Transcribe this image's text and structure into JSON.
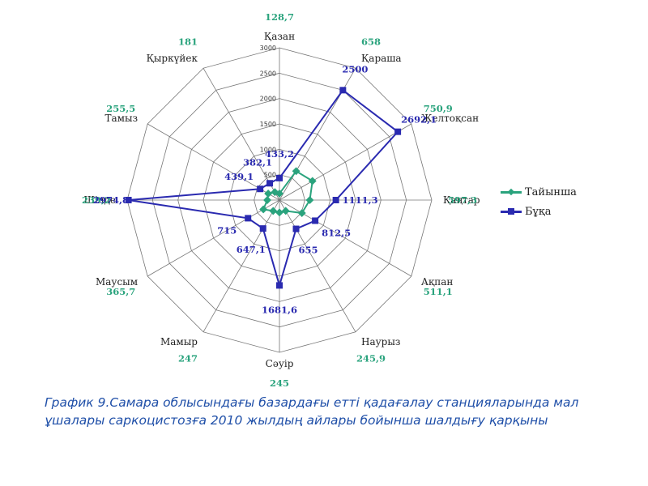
{
  "chart_data": {
    "type": "radar",
    "title": "",
    "categories": [
      "Қазан",
      "Қараша",
      "Желтоқсан",
      "Қаңтар",
      "Ақпан",
      "Наурыз",
      "Сәуір",
      "Мамыр",
      "Маусым",
      "Шілде",
      "Тамыз",
      "Қыркүйек"
    ],
    "rticks": [
      "500",
      "1000",
      "1500",
      "2000",
      "2500",
      "3000"
    ],
    "rmax": 3000,
    "series": [
      {
        "name": "Тайынша",
        "color": "#2aa37d",
        "values": [
          128.7,
          658,
          750.9,
          597.3,
          511.1,
          245.9,
          245,
          247,
          365.7,
          239.2,
          255.5,
          181
        ],
        "labels": [
          "128,7",
          "658",
          "750,9",
          "597,3",
          "511,1",
          "245,9",
          "245",
          "247",
          "365,7",
          "239,2",
          "255,5",
          "181"
        ]
      },
      {
        "name": "Бұқа",
        "color": "#2a2ab0",
        "values": [
          433.2,
          2500,
          2692.1,
          1111.3,
          812.5,
          655,
          1681.6,
          647.1,
          715,
          2974.8,
          439.1,
          382.1
        ],
        "labels": [
          "433,2",
          "2500",
          "2692,1",
          "1111,3",
          "812,5",
          "655",
          "1681,6",
          "647,1",
          "715",
          "2974,8",
          "439,1",
          "382,1"
        ]
      }
    ],
    "legend": "right"
  },
  "caption": "График 9.Самара облысындағы базардағы етті қадағалау станцияларында мал ұшалары саркоцистозға 2010 жылдың айлары бойынша шалдығу қарқыны"
}
